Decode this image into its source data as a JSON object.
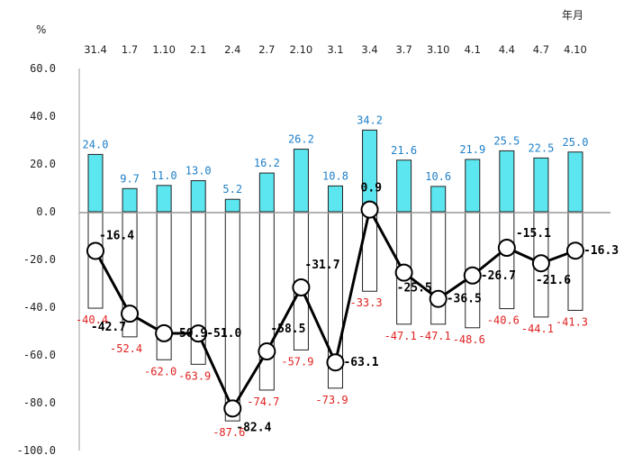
{
  "chart_data": {
    "type": "bar",
    "title": "",
    "ylabel": "%",
    "xlabel": "年月",
    "ylim": [
      -100,
      60
    ],
    "yticks": [
      "60.0",
      "40.0",
      "20.0",
      "0.0",
      "-20.0",
      "-40.0",
      "-60.0",
      "-80.0",
      "-100.0"
    ],
    "grid": false,
    "legend": "none",
    "categories": [
      "31.4",
      "1.7",
      "1.10",
      "2.1",
      "2.4",
      "2.7",
      "2.10",
      "3.1",
      "3.4",
      "3.7",
      "3.10",
      "4.1",
      "4.4",
      "4.7",
      "4.10"
    ],
    "series": [
      {
        "kind": "bar",
        "values": [
          24.0,
          9.7,
          11.0,
          13.0,
          5.2,
          16.2,
          26.2,
          10.8,
          34.2,
          21.6,
          10.6,
          21.9,
          25.5,
          22.5,
          25.0
        ],
        "color": "#5ce6f0",
        "label_color": "#1e7fc8"
      },
      {
        "kind": "bar",
        "values": [
          -40.4,
          -52.4,
          -62.0,
          -63.9,
          -87.6,
          -74.7,
          -57.9,
          -73.9,
          -33.3,
          -47.1,
          -47.1,
          -48.6,
          -40.6,
          -44.1,
          -41.3
        ],
        "color": "#ffffff",
        "label_color": "#e02020"
      },
      {
        "kind": "line",
        "values": [
          -16.4,
          -42.7,
          -50.9,
          -51.0,
          -82.4,
          -58.5,
          -31.7,
          -63.1,
          0.9,
          -25.5,
          -36.5,
          -26.7,
          -15.1,
          -21.6,
          -16.3
        ],
        "labels": [
          "-16.4",
          "-42.7",
          "-50.9",
          "-51.0",
          "-82.4",
          "-58.5",
          "-31.7",
          "-63.1",
          "0.9",
          "-25.5",
          "-36.5",
          "-26.7",
          "-15.1",
          "-21.6",
          "-16.3"
        ],
        "color": "#000000"
      }
    ]
  }
}
